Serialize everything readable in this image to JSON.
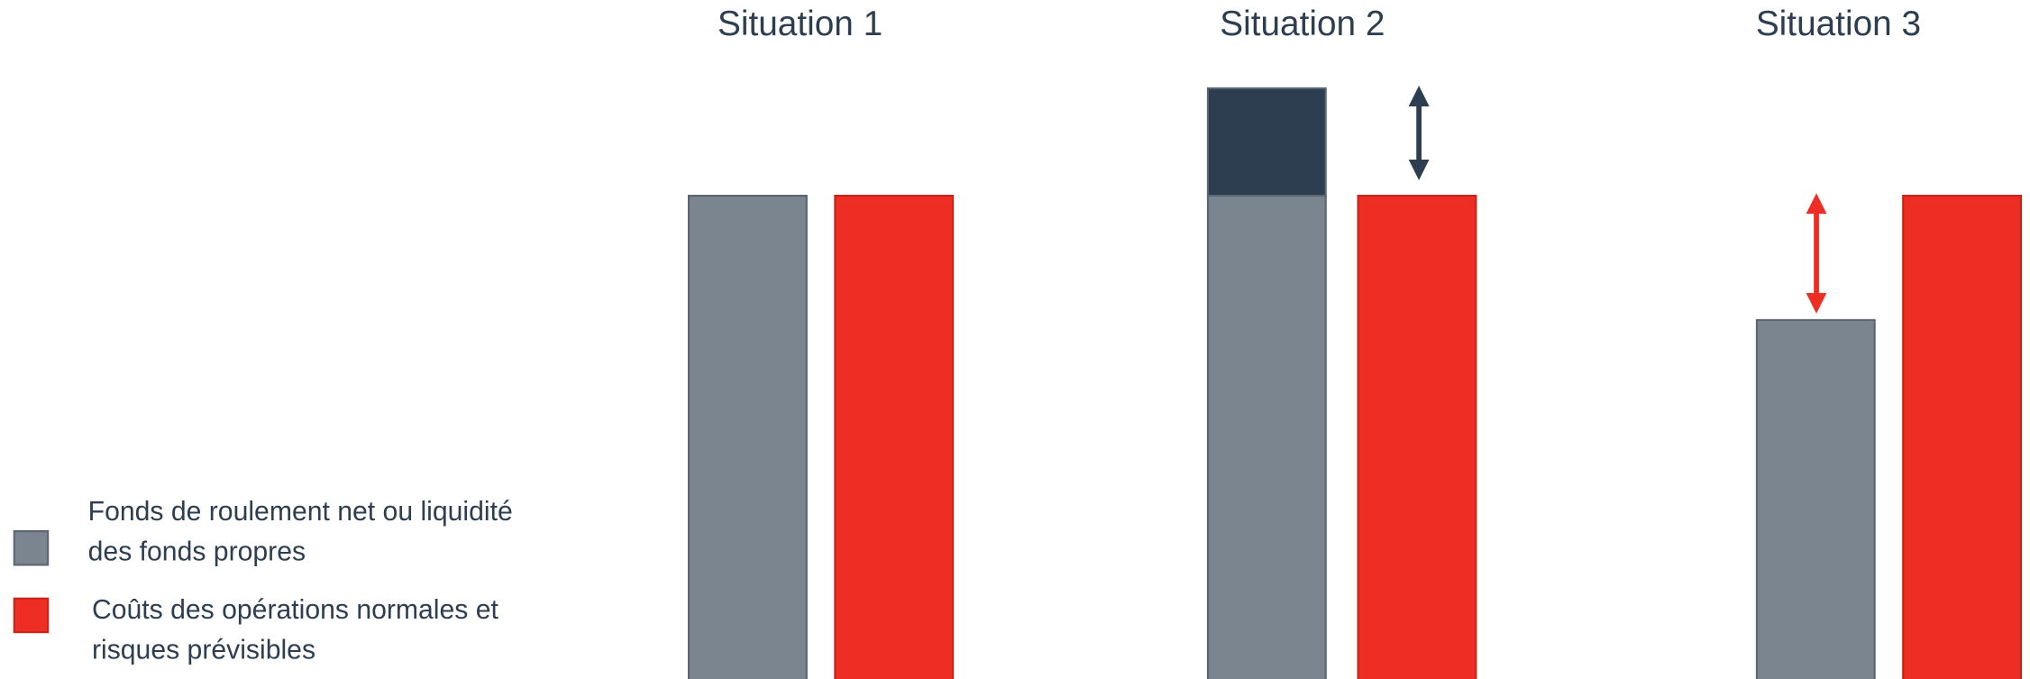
{
  "titles": [
    "Situation 1",
    "Situation 2",
    "Situation 3"
  ],
  "legend": [
    {
      "lines": [
        "Fonds de roulement net ou liquidité",
        "des fonds propres"
      ]
    },
    {
      "lines": [
        "Coûts des opérations normales et",
        "risques prévisibles"
      ]
    }
  ]
}
